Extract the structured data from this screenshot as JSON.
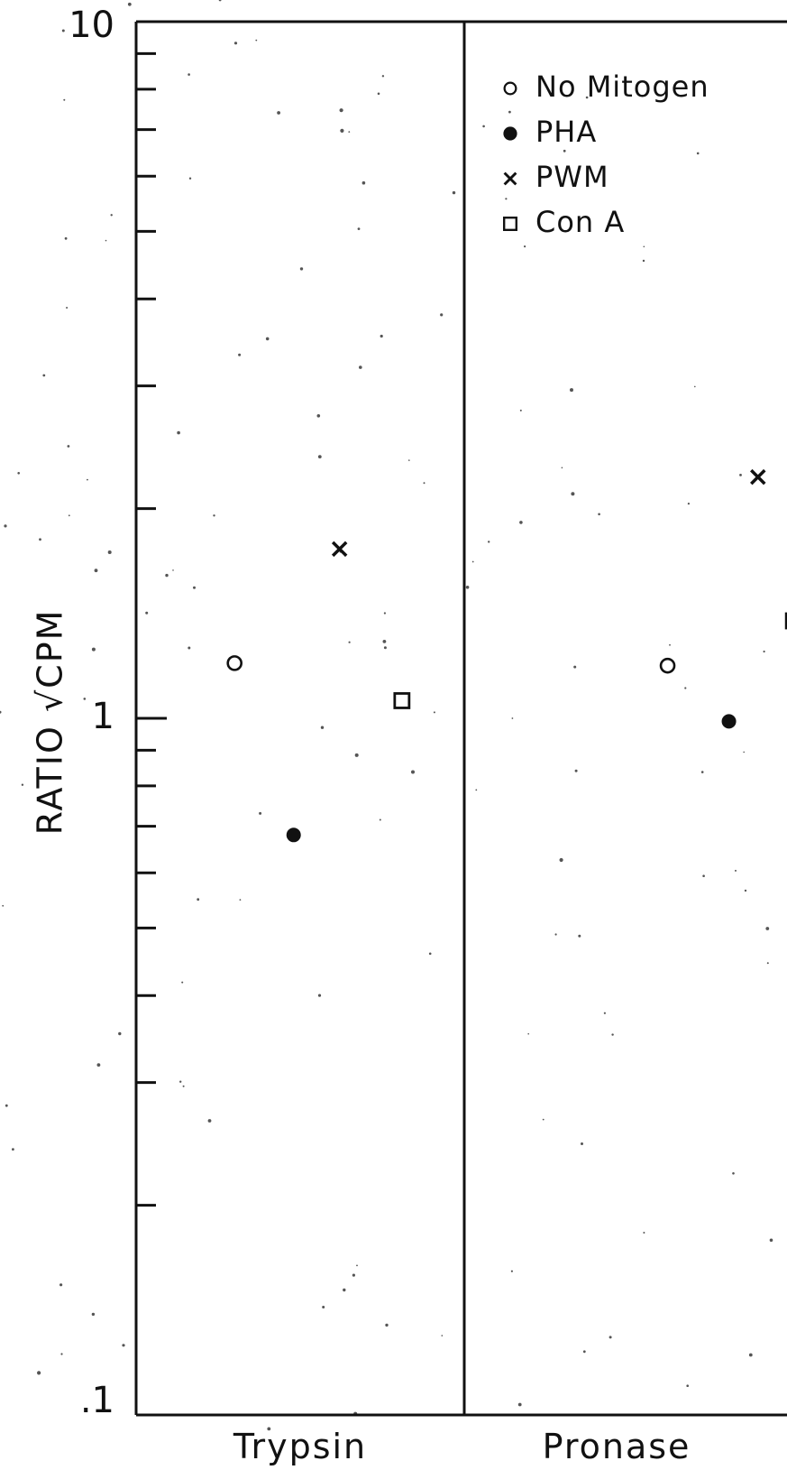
{
  "chart_data": {
    "type": "scatter",
    "ylabel": "RATIO √CPM",
    "yscale": "log",
    "ylim": [
      0.1,
      10
    ],
    "yticks_major": [
      {
        "value": 0.1,
        "label": ".1"
      },
      {
        "value": 1,
        "label": "1"
      },
      {
        "value": 10,
        "label": "10"
      }
    ],
    "yticks_minor": [
      0.2,
      0.3,
      0.4,
      0.5,
      0.6,
      0.7,
      0.8,
      0.9,
      2,
      3,
      4,
      5,
      6,
      7,
      8,
      9
    ],
    "panels": [
      {
        "name": "Trypsin",
        "points": [
          {
            "series": "No Mitogen",
            "y": 1.2
          },
          {
            "series": "PHA",
            "y": 0.68
          },
          {
            "series": "PWM",
            "y": 1.75
          },
          {
            "series": "Con A",
            "y": 1.06
          }
        ]
      },
      {
        "name": "Pronase",
        "points": [
          {
            "series": "No Mitogen",
            "y": 1.19
          },
          {
            "series": "PHA",
            "y": 0.99
          },
          {
            "series": "PWM",
            "y": 2.22
          },
          {
            "series": "Con A",
            "y": 1.38
          }
        ]
      }
    ],
    "series": [
      {
        "name": "No Mitogen",
        "marker": "open-circle"
      },
      {
        "name": "PHA",
        "marker": "filled-circle"
      },
      {
        "name": "PWM",
        "marker": "cross"
      },
      {
        "name": "Con A",
        "marker": "open-square"
      }
    ],
    "legend_position": "top-right",
    "grid": false
  }
}
